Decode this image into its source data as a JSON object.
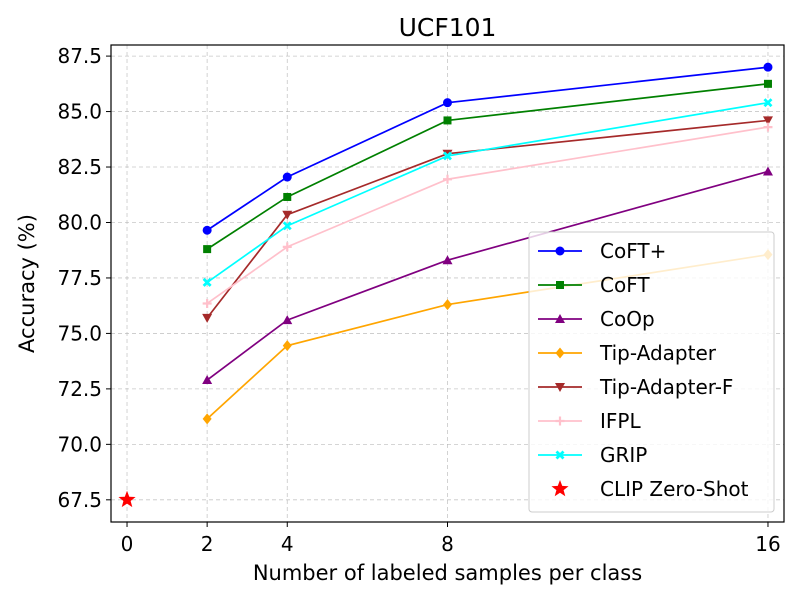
{
  "chart_data": {
    "type": "line",
    "title": "UCF101",
    "xlabel": "Number of labeled samples per class",
    "ylabel": "Accuracy (%)",
    "xlim": [
      -0.4,
      16.4
    ],
    "ylim": [
      66.5,
      88.0
    ],
    "xticks": [
      0,
      2,
      4,
      8,
      16
    ],
    "xtick_labels": [
      "0",
      "2",
      "4",
      "8",
      "16"
    ],
    "yticks": [
      67.5,
      70.0,
      72.5,
      75.0,
      77.5,
      80.0,
      82.5,
      85.0,
      87.5
    ],
    "ytick_labels": [
      "67.5",
      "70.0",
      "72.5",
      "75.0",
      "77.5",
      "80.0",
      "82.5",
      "85.0",
      "87.5"
    ],
    "grid": true,
    "legend_position": "lower-right",
    "series": [
      {
        "name": "CoFT+",
        "color": "#0000ff",
        "marker": "circle",
        "x": [
          2,
          4,
          8,
          16
        ],
        "values": [
          79.65,
          82.05,
          85.4,
          87.0
        ]
      },
      {
        "name": "CoFT",
        "color": "#008000",
        "marker": "square",
        "x": [
          2,
          4,
          8,
          16
        ],
        "values": [
          78.8,
          81.15,
          84.6,
          86.25
        ]
      },
      {
        "name": "CoOp",
        "color": "#800080",
        "marker": "triangle-up",
        "x": [
          2,
          4,
          8,
          16
        ],
        "values": [
          72.9,
          75.6,
          78.3,
          82.3
        ]
      },
      {
        "name": "Tip-Adapter",
        "color": "#ffa500",
        "marker": "diamond",
        "x": [
          2,
          4,
          8,
          16
        ],
        "values": [
          71.15,
          74.45,
          76.3,
          78.55
        ]
      },
      {
        "name": "Tip-Adapter-F",
        "color": "#a52a2a",
        "marker": "triangle-down",
        "x": [
          2,
          4,
          8,
          16
        ],
        "values": [
          75.7,
          80.35,
          83.1,
          84.6
        ]
      },
      {
        "name": "IFPL",
        "color": "#ffc0cb",
        "marker": "plus",
        "x": [
          2,
          4,
          8,
          16
        ],
        "values": [
          76.35,
          78.9,
          81.95,
          84.3
        ]
      },
      {
        "name": "GRIP",
        "color": "#00ffff",
        "marker": "x",
        "x": [
          2,
          4,
          8,
          16
        ],
        "values": [
          77.3,
          79.85,
          83.0,
          85.4
        ]
      },
      {
        "name": "CLIP Zero-Shot",
        "color": "#ff0000",
        "marker": "star",
        "x": [
          0
        ],
        "values": [
          67.5
        ]
      }
    ]
  }
}
